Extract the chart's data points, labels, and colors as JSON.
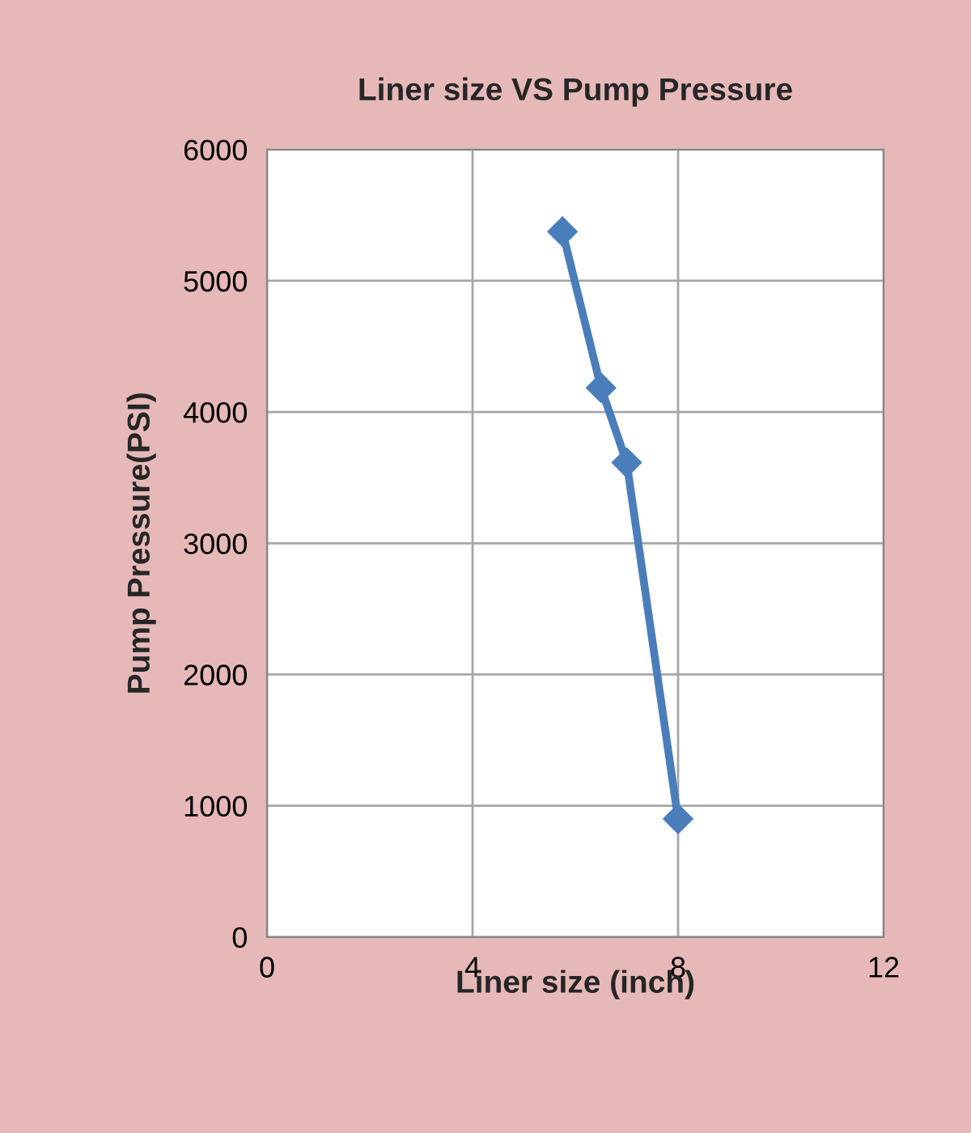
{
  "chart_data": {
    "type": "line",
    "title": "Liner size VS Pump Pressure",
    "xlabel": "Liner size (inch)",
    "ylabel": "Pump Pressure(PSI)",
    "x": [
      5.75,
      6.5,
      7.0,
      8.0
    ],
    "series": [
      {
        "color": "#4a7ebb",
        "values": [
          5375,
          4185,
          3615,
          900
        ]
      }
    ],
    "xlim": [
      0,
      12
    ],
    "xticks": [
      0,
      4,
      8,
      12
    ],
    "ylim": [
      0,
      6000
    ],
    "yticks": [
      0,
      1000,
      2000,
      3000,
      4000,
      5000,
      6000
    ],
    "grid": true,
    "marker": "diamond",
    "line_style": "solid"
  }
}
